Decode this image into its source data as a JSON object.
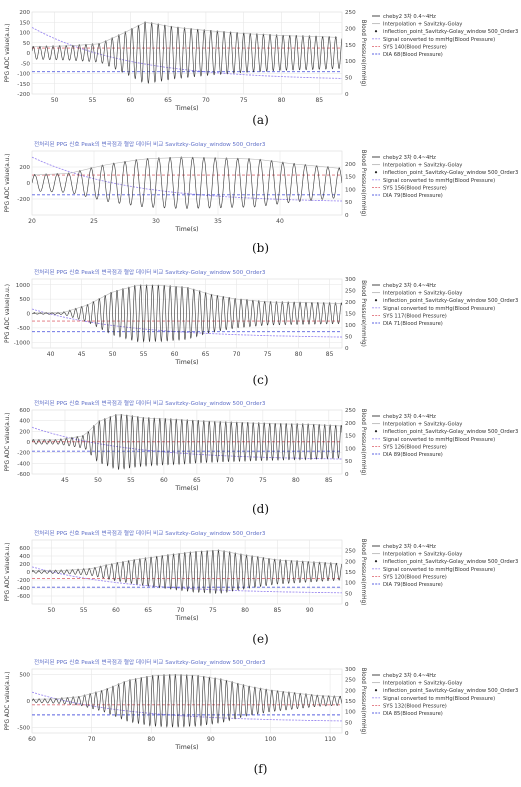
{
  "chart_data": [
    {
      "type": "line",
      "panel_label": "(a)",
      "title": "",
      "xlabel": "Time(s)",
      "ylabel": "PPG ADC value(a.u.)",
      "y2label": "Blood Pressure(mmHg)",
      "xlim": [
        47,
        88
      ],
      "ylim": [
        -200,
        200
      ],
      "y2lim": [
        0,
        250
      ],
      "xticks": [
        50,
        55,
        60,
        65,
        70,
        75,
        80,
        85
      ],
      "yticks": [
        -200,
        -150,
        -100,
        -50,
        0,
        50,
        100,
        150,
        200
      ],
      "y2ticks": [
        0,
        50,
        100,
        150,
        200,
        250
      ],
      "signal": {
        "start": 47,
        "end": 88,
        "freq_hz": 1.15,
        "envelope_t": [
          47,
          52,
          56,
          59,
          62,
          66,
          70,
          75,
          80,
          85,
          88
        ],
        "envelope_a": [
          30,
          35,
          45,
          95,
          150,
          125,
          110,
          95,
          85,
          80,
          75
        ],
        "baseline": 0
      },
      "dia_value": 68,
      "sys_value": 140,
      "legend": [
        "cheby2 3차 0.4~4Hz",
        "Interpolation + Savitzky-Golay",
        "inflection_point_Savitzky-Golay_window 500_Order3",
        "Signal converted to mmHg(Blood Pressure)",
        "SYS 140(Blood Pressure)",
        "DIA 68(Blood Pressure)"
      ],
      "legend_placement": "top-right",
      "grid": true
    },
    {
      "type": "line",
      "panel_label": "(b)",
      "title": "전처리된 PPG 신호 Peak의 변곡점과 혈압 데이터 비교 Savitzky-Golay_window 500_Order3",
      "xlabel": "Time(s)",
      "ylabel": "PPG ADC value(a.u.)",
      "y2label": "Blood Pressure(mmHg)",
      "xlim": [
        20,
        45
      ],
      "ylim": [
        -400,
        400
      ],
      "y2lim": [
        0,
        250
      ],
      "xticks": [
        20,
        25,
        30,
        35,
        40
      ],
      "yticks": [
        -200,
        0,
        200
      ],
      "y2ticks": [
        0,
        50,
        100,
        150,
        200
      ],
      "signal": {
        "start": 20,
        "end": 45,
        "freq_hz": 1.1,
        "envelope_t": [
          20,
          23,
          26,
          29,
          32,
          35,
          38,
          41,
          45
        ],
        "envelope_a": [
          100,
          120,
          230,
          300,
          320,
          310,
          300,
          240,
          180
        ],
        "baseline": 0
      },
      "dia_value": 79,
      "sys_value": 156,
      "legend": [
        "cheby2 3차 0.4~4Hz",
        "Interpolation + Savitzky-Golay",
        "inflection_point_Savitzky-Golay_window 500_Order3",
        "Signal converted to mmHg(Blood Pressure)",
        "SYS 156(Blood Pressure)",
        "DIA 79(Blood Pressure)"
      ],
      "legend_placement": "top-right",
      "grid": true
    },
    {
      "type": "line",
      "panel_label": "(c)",
      "title": "전처리된 PPG 신호 Peak의 변곡점과 혈압 데이터 비교 Savitzky-Golay_window 500_Order3",
      "xlabel": "Time(s)",
      "ylabel": "PPG ADC value(a.u.)",
      "y2label": "Blood Pressure(mmHg)",
      "xlim": [
        37,
        87
      ],
      "ylim": [
        -1200,
        1200
      ],
      "y2lim": [
        0,
        300
      ],
      "xticks": [
        40,
        45,
        50,
        55,
        60,
        65,
        70,
        75,
        80,
        85
      ],
      "yticks": [
        -1000,
        -500,
        0,
        500,
        1000
      ],
      "y2ticks": [
        0,
        50,
        100,
        150,
        200,
        250,
        300
      ],
      "signal": {
        "start": 37,
        "end": 87,
        "freq_hz": 1.05,
        "envelope_t": [
          37,
          42,
          46,
          50,
          54,
          58,
          62,
          66,
          70,
          75,
          80,
          87
        ],
        "envelope_a": [
          20,
          30,
          300,
          750,
          980,
          970,
          900,
          650,
          500,
          400,
          380,
          350
        ],
        "baseline": 0
      },
      "dia_value": 71,
      "sys_value": 117,
      "legend": [
        "cheby2 3차 0.4~4Hz",
        "Interpolation + Savitzky-Golay",
        "inflection_point_Savitzky-Golay_window 500_Order3",
        "Signal converted to mmHg(Blood Pressure)",
        "SYS 117(Blood Pressure)",
        "DIA 71(Blood Pressure)"
      ],
      "legend_placement": "top-right",
      "grid": true
    },
    {
      "type": "line",
      "panel_label": "(d)",
      "title": "전처리된 PPG 신호 Peak의 변곡점과 혈압 데이터 비교 Savitzky-Golay_window 500_Order3",
      "xlabel": "Time(s)",
      "ylabel": "PPG ADC value(a.u.)",
      "y2label": "Blood Pressure(mmHg)",
      "xlim": [
        40,
        87
      ],
      "ylim": [
        -600,
        600
      ],
      "y2lim": [
        0,
        250
      ],
      "xticks": [
        45,
        50,
        55,
        60,
        65,
        70,
        75,
        80,
        85
      ],
      "yticks": [
        -600,
        -400,
        -200,
        0,
        200,
        400,
        600
      ],
      "y2ticks": [
        0,
        50,
        100,
        150,
        200,
        250
      ],
      "signal": {
        "start": 40,
        "end": 87,
        "freq_hz": 1.2,
        "envelope_t": [
          40,
          44,
          48,
          50,
          53,
          57,
          62,
          67,
          72,
          77,
          82,
          87
        ],
        "envelope_a": [
          40,
          40,
          120,
          380,
          520,
          450,
          420,
          380,
          360,
          340,
          330,
          300
        ],
        "baseline": 0
      },
      "dia_value": 89,
      "sys_value": 126,
      "legend": [
        "cheby2 3차 0.4~4Hz",
        "Interpolation + Savitzky-Golay",
        "inflection_point_Savitzky-Golay_window 500_Order3",
        "Signal converted to mmHg(Blood Pressure)",
        "SYS 126(Blood Pressure)",
        "DIA 89(Blood Pressure)"
      ],
      "legend_placement": "top-right",
      "grid": true
    },
    {
      "type": "line",
      "panel_label": "(e)",
      "title": "전처리된 PPG 신호 Peak의 변곡점과 혈압 데이터 비교 Savitzky-Golay_window 500_Order3",
      "xlabel": "Time(s)",
      "ylabel": "PPG ADC value(a.u.)",
      "y2label": "Blood Pressure(mmHg)",
      "xlim": [
        47,
        95
      ],
      "ylim": [
        -800,
        800
      ],
      "y2lim": [
        0,
        300
      ],
      "xticks": [
        50,
        55,
        60,
        65,
        70,
        75,
        80,
        85,
        90
      ],
      "yticks": [
        -600,
        -400,
        -200,
        0,
        200,
        400,
        600
      ],
      "y2ticks": [
        0,
        50,
        100,
        150,
        200,
        250
      ],
      "signal": {
        "start": 47,
        "end": 95,
        "freq_hz": 1.15,
        "envelope_t": [
          47,
          52,
          56,
          60,
          64,
          68,
          72,
          76,
          80,
          85,
          90,
          95
        ],
        "envelope_a": [
          30,
          40,
          80,
          220,
          330,
          420,
          500,
          540,
          420,
          300,
          250,
          200
        ],
        "baseline": 0
      },
      "dia_value": 79,
      "sys_value": 120,
      "legend": [
        "cheby2 3차 0.4~4Hz",
        "Interpolation + Savitzky-Golay",
        "inflection_point_Savitzky-Golay_window 500_Order3",
        "Signal converted to mmHg(Blood Pressure)",
        "SYS 120(Blood Pressure)",
        "DIA 79(Blood Pressure)"
      ],
      "legend_placement": "top-right",
      "grid": true
    },
    {
      "type": "line",
      "panel_label": "(f)",
      "title": "전처리된 PPG 신호 Peak의 변곡점과 혈압 데이터 비교 Savitzky-Golay_window 500_Order3",
      "xlabel": "Time(s)",
      "ylabel": "PPG ADC value(a.u.)",
      "y2label": "Blood Pressure(mmHg)",
      "xlim": [
        60,
        112
      ],
      "ylim": [
        -600,
        600
      ],
      "y2lim": [
        0,
        300
      ],
      "xticks": [
        60,
        70,
        80,
        90,
        100,
        110
      ],
      "yticks": [
        -500,
        0,
        500
      ],
      "y2ticks": [
        0,
        50,
        100,
        150,
        200,
        250,
        300
      ],
      "signal": {
        "start": 60,
        "end": 112,
        "freq_hz": 1.05,
        "envelope_t": [
          60,
          64,
          68,
          72,
          76,
          80,
          84,
          88,
          92,
          96,
          100,
          104,
          108,
          112
        ],
        "envelope_a": [
          30,
          40,
          80,
          200,
          380,
          470,
          490,
          470,
          400,
          280,
          200,
          150,
          100,
          80
        ],
        "baseline": 0
      },
      "dia_value": 85,
      "sys_value": 132,
      "legend": [
        "cheby2 3차 0.4~4Hz",
        "Interpolation + Savitzky-Golay",
        "inflection_point_Savitzky-Golay_window 500_Order3",
        "Signal converted to mmHg(Blood Pressure)",
        "SYS 132(Blood Pressure)",
        "DIA 85(Blood Pressure)"
      ],
      "legend_placement": "top-right",
      "grid": true
    }
  ],
  "colors": {
    "signal": "#333333",
    "interp": "#b9b9b9",
    "inflection": "#222222",
    "bp_signal": "#9f8df0",
    "sys": "#e0707a",
    "dia": "#5a62e0",
    "grid": "#e6e6e6",
    "title": "#6070c8"
  }
}
